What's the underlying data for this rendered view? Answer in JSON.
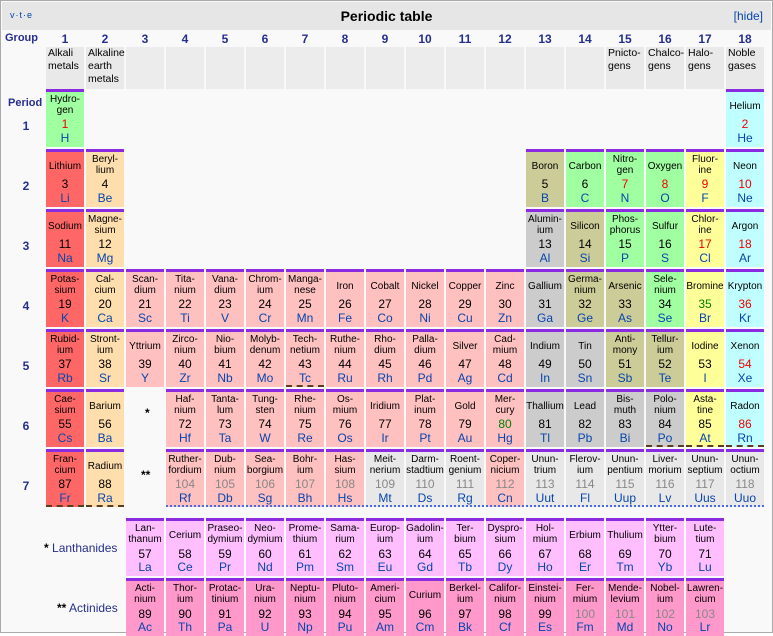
{
  "header": {
    "vte": "v·t·e",
    "title": "Periodic table",
    "hide_label": "[hide]"
  },
  "labels": {
    "group": "Group",
    "period": "Period",
    "lanth_star": "*",
    "act_star": "**",
    "lanth_label": "Lanthanides",
    "act_label": "Actinides"
  },
  "groups": [
    {
      "n": "1",
      "name": "Alkali metals"
    },
    {
      "n": "2",
      "name": "Alkaline earth metals"
    },
    {
      "n": "3",
      "name": ""
    },
    {
      "n": "4",
      "name": ""
    },
    {
      "n": "5",
      "name": ""
    },
    {
      "n": "6",
      "name": ""
    },
    {
      "n": "7",
      "name": ""
    },
    {
      "n": "8",
      "name": ""
    },
    {
      "n": "9",
      "name": ""
    },
    {
      "n": "10",
      "name": ""
    },
    {
      "n": "11",
      "name": ""
    },
    {
      "n": "12",
      "name": ""
    },
    {
      "n": "13",
      "name": ""
    },
    {
      "n": "14",
      "name": ""
    },
    {
      "n": "15",
      "name": "Pnicto-gens"
    },
    {
      "n": "16",
      "name": "Chalco-gens"
    },
    {
      "n": "17",
      "name": "Halo-gens"
    },
    {
      "n": "18",
      "name": "Noble gases"
    }
  ],
  "periods": [
    "1",
    "2",
    "3",
    "4",
    "5",
    "6",
    "7"
  ],
  "elements": [
    {
      "g": 1,
      "p": 1,
      "name": "Hydro-gen",
      "num": "1",
      "sym": "H",
      "cat": "nm",
      "st": "g"
    },
    {
      "g": 18,
      "p": 1,
      "name": "Helium",
      "num": "2",
      "sym": "He",
      "cat": "ng",
      "st": "g"
    },
    {
      "g": 1,
      "p": 2,
      "name": "Lithium",
      "num": "3",
      "sym": "Li",
      "cat": "alk",
      "st": "s"
    },
    {
      "g": 2,
      "p": 2,
      "name": "Beryl-lium",
      "num": "4",
      "sym": "Be",
      "cat": "ae",
      "st": "s"
    },
    {
      "g": 13,
      "p": 2,
      "name": "Boron",
      "num": "5",
      "sym": "B",
      "cat": "ml",
      "st": "s"
    },
    {
      "g": 14,
      "p": 2,
      "name": "Carbon",
      "num": "6",
      "sym": "C",
      "cat": "nm",
      "st": "s"
    },
    {
      "g": 15,
      "p": 2,
      "name": "Nitro-gen",
      "num": "7",
      "sym": "N",
      "cat": "nm",
      "st": "g"
    },
    {
      "g": 16,
      "p": 2,
      "name": "Oxygen",
      "num": "8",
      "sym": "O",
      "cat": "nm",
      "st": "g"
    },
    {
      "g": 17,
      "p": 2,
      "name": "Fluor-ine",
      "num": "9",
      "sym": "F",
      "cat": "hal",
      "st": "g"
    },
    {
      "g": 18,
      "p": 2,
      "name": "Neon",
      "num": "10",
      "sym": "Ne",
      "cat": "ng",
      "st": "g"
    },
    {
      "g": 1,
      "p": 3,
      "name": "Sodium",
      "num": "11",
      "sym": "Na",
      "cat": "alk",
      "st": "s"
    },
    {
      "g": 2,
      "p": 3,
      "name": "Magne-sium",
      "num": "12",
      "sym": "Mg",
      "cat": "ae",
      "st": "s"
    },
    {
      "g": 13,
      "p": 3,
      "name": "Alumin-ium",
      "num": "13",
      "sym": "Al",
      "cat": "pt",
      "st": "s"
    },
    {
      "g": 14,
      "p": 3,
      "name": "Silicon",
      "num": "14",
      "sym": "Si",
      "cat": "ml",
      "st": "s"
    },
    {
      "g": 15,
      "p": 3,
      "name": "Phos-phorus",
      "num": "15",
      "sym": "P",
      "cat": "nm",
      "st": "s"
    },
    {
      "g": 16,
      "p": 3,
      "name": "Sulfur",
      "num": "16",
      "sym": "S",
      "cat": "nm",
      "st": "s"
    },
    {
      "g": 17,
      "p": 3,
      "name": "Chlor-ine",
      "num": "17",
      "sym": "Cl",
      "cat": "hal",
      "st": "g"
    },
    {
      "g": 18,
      "p": 3,
      "name": "Argon",
      "num": "18",
      "sym": "Ar",
      "cat": "ng",
      "st": "g"
    },
    {
      "g": 1,
      "p": 4,
      "name": "Potas-sium",
      "num": "19",
      "sym": "K",
      "cat": "alk",
      "st": "s"
    },
    {
      "g": 2,
      "p": 4,
      "name": "Cal-cium",
      "num": "20",
      "sym": "Ca",
      "cat": "ae",
      "st": "s"
    },
    {
      "g": 3,
      "p": 4,
      "name": "Scan-dium",
      "num": "21",
      "sym": "Sc",
      "cat": "tm",
      "st": "s"
    },
    {
      "g": 4,
      "p": 4,
      "name": "Tita-nium",
      "num": "22",
      "sym": "Ti",
      "cat": "tm",
      "st": "s"
    },
    {
      "g": 5,
      "p": 4,
      "name": "Vana-dium",
      "num": "23",
      "sym": "V",
      "cat": "tm",
      "st": "s"
    },
    {
      "g": 6,
      "p": 4,
      "name": "Chrom-ium",
      "num": "24",
      "sym": "Cr",
      "cat": "tm",
      "st": "s"
    },
    {
      "g": 7,
      "p": 4,
      "name": "Manga-nese",
      "num": "25",
      "sym": "Mn",
      "cat": "tm",
      "st": "s"
    },
    {
      "g": 8,
      "p": 4,
      "name": "Iron",
      "num": "26",
      "sym": "Fe",
      "cat": "tm",
      "st": "s"
    },
    {
      "g": 9,
      "p": 4,
      "name": "Cobalt",
      "num": "27",
      "sym": "Co",
      "cat": "tm",
      "st": "s"
    },
    {
      "g": 10,
      "p": 4,
      "name": "Nickel",
      "num": "28",
      "sym": "Ni",
      "cat": "tm",
      "st": "s"
    },
    {
      "g": 11,
      "p": 4,
      "name": "Copper",
      "num": "29",
      "sym": "Cu",
      "cat": "tm",
      "st": "s"
    },
    {
      "g": 12,
      "p": 4,
      "name": "Zinc",
      "num": "30",
      "sym": "Zn",
      "cat": "tm",
      "st": "s"
    },
    {
      "g": 13,
      "p": 4,
      "name": "Gallium",
      "num": "31",
      "sym": "Ga",
      "cat": "pt",
      "st": "s"
    },
    {
      "g": 14,
      "p": 4,
      "name": "Germa-nium",
      "num": "32",
      "sym": "Ge",
      "cat": "ml",
      "st": "s"
    },
    {
      "g": 15,
      "p": 4,
      "name": "Arsenic",
      "num": "33",
      "sym": "As",
      "cat": "ml",
      "st": "s"
    },
    {
      "g": 16,
      "p": 4,
      "name": "Sele-nium",
      "num": "34",
      "sym": "Se",
      "cat": "nm",
      "st": "s"
    },
    {
      "g": 17,
      "p": 4,
      "name": "Bromine",
      "num": "35",
      "sym": "Br",
      "cat": "hal",
      "st": "l"
    },
    {
      "g": 18,
      "p": 4,
      "name": "Krypton",
      "num": "36",
      "sym": "Kr",
      "cat": "ng",
      "st": "g"
    },
    {
      "g": 1,
      "p": 5,
      "name": "Rubid-ium",
      "num": "37",
      "sym": "Rb",
      "cat": "alk",
      "st": "s"
    },
    {
      "g": 2,
      "p": 5,
      "name": "Stront-ium",
      "num": "38",
      "sym": "Sr",
      "cat": "ae",
      "st": "s"
    },
    {
      "g": 3,
      "p": 5,
      "name": "Yttrium",
      "num": "39",
      "sym": "Y",
      "cat": "tm",
      "st": "s"
    },
    {
      "g": 4,
      "p": 5,
      "name": "Zirco-nium",
      "num": "40",
      "sym": "Zr",
      "cat": "tm",
      "st": "s"
    },
    {
      "g": 5,
      "p": 5,
      "name": "Nio-bium",
      "num": "41",
      "sym": "Nb",
      "cat": "tm",
      "st": "s"
    },
    {
      "g": 6,
      "p": 5,
      "name": "Molyb-denum",
      "num": "42",
      "sym": "Mo",
      "cat": "tm",
      "st": "s"
    },
    {
      "g": 7,
      "p": 5,
      "name": "Tech-netium",
      "num": "43",
      "sym": "Tc",
      "cat": "tm",
      "st": "s",
      "bd": "dashed"
    },
    {
      "g": 8,
      "p": 5,
      "name": "Ruthe-nium",
      "num": "44",
      "sym": "Ru",
      "cat": "tm",
      "st": "s"
    },
    {
      "g": 9,
      "p": 5,
      "name": "Rho-dium",
      "num": "45",
      "sym": "Rh",
      "cat": "tm",
      "st": "s"
    },
    {
      "g": 10,
      "p": 5,
      "name": "Palla-dium",
      "num": "46",
      "sym": "Pd",
      "cat": "tm",
      "st": "s"
    },
    {
      "g": 11,
      "p": 5,
      "name": "Silver",
      "num": "47",
      "sym": "Ag",
      "cat": "tm",
      "st": "s"
    },
    {
      "g": 12,
      "p": 5,
      "name": "Cad-mium",
      "num": "48",
      "sym": "Cd",
      "cat": "tm",
      "st": "s"
    },
    {
      "g": 13,
      "p": 5,
      "name": "Indium",
      "num": "49",
      "sym": "In",
      "cat": "pt",
      "st": "s"
    },
    {
      "g": 14,
      "p": 5,
      "name": "Tin",
      "num": "50",
      "sym": "Sn",
      "cat": "pt",
      "st": "s"
    },
    {
      "g": 15,
      "p": 5,
      "name": "Anti-mony",
      "num": "51",
      "sym": "Sb",
      "cat": "ml",
      "st": "s"
    },
    {
      "g": 16,
      "p": 5,
      "name": "Tellur-ium",
      "num": "52",
      "sym": "Te",
      "cat": "ml",
      "st": "s"
    },
    {
      "g": 17,
      "p": 5,
      "name": "Iodine",
      "num": "53",
      "sym": "I",
      "cat": "hal",
      "st": "s"
    },
    {
      "g": 18,
      "p": 5,
      "name": "Xenon",
      "num": "54",
      "sym": "Xe",
      "cat": "ng",
      "st": "g"
    },
    {
      "g": 1,
      "p": 6,
      "name": "Cae-sium",
      "num": "55",
      "sym": "Cs",
      "cat": "alk",
      "st": "s"
    },
    {
      "g": 2,
      "p": 6,
      "name": "Barium",
      "num": "56",
      "sym": "Ba",
      "cat": "ae",
      "st": "s"
    },
    {
      "g": 4,
      "p": 6,
      "name": "Haf-nium",
      "num": "72",
      "sym": "Hf",
      "cat": "tm",
      "st": "s"
    },
    {
      "g": 5,
      "p": 6,
      "name": "Tanta-lum",
      "num": "73",
      "sym": "Ta",
      "cat": "tm",
      "st": "s"
    },
    {
      "g": 6,
      "p": 6,
      "name": "Tung-sten",
      "num": "74",
      "sym": "W",
      "cat": "tm",
      "st": "s"
    },
    {
      "g": 7,
      "p": 6,
      "name": "Rhe-nium",
      "num": "75",
      "sym": "Re",
      "cat": "tm",
      "st": "s"
    },
    {
      "g": 8,
      "p": 6,
      "name": "Os-mium",
      "num": "76",
      "sym": "Os",
      "cat": "tm",
      "st": "s"
    },
    {
      "g": 9,
      "p": 6,
      "name": "Iridium",
      "num": "77",
      "sym": "Ir",
      "cat": "tm",
      "st": "s"
    },
    {
      "g": 10,
      "p": 6,
      "name": "Plat-inum",
      "num": "78",
      "sym": "Pt",
      "cat": "tm",
      "st": "s"
    },
    {
      "g": 11,
      "p": 6,
      "name": "Gold",
      "num": "79",
      "sym": "Au",
      "cat": "tm",
      "st": "s"
    },
    {
      "g": 12,
      "p": 6,
      "name": "Mer-cury",
      "num": "80",
      "sym": "Hg",
      "cat": "tm",
      "st": "l"
    },
    {
      "g": 13,
      "p": 6,
      "name": "Thallium",
      "num": "81",
      "sym": "Tl",
      "cat": "pt",
      "st": "s"
    },
    {
      "g": 14,
      "p": 6,
      "name": "Lead",
      "num": "82",
      "sym": "Pb",
      "cat": "pt",
      "st": "s"
    },
    {
      "g": 15,
      "p": 6,
      "name": "Bis-muth",
      "num": "83",
      "sym": "Bi",
      "cat": "pt",
      "st": "s"
    },
    {
      "g": 16,
      "p": 6,
      "name": "Polo-nium",
      "num": "84",
      "sym": "Po",
      "cat": "pt",
      "st": "s",
      "bd": "dashed"
    },
    {
      "g": 17,
      "p": 6,
      "name": "Asta-tine",
      "num": "85",
      "sym": "At",
      "cat": "hal",
      "st": "s",
      "bd": "dashed"
    },
    {
      "g": 18,
      "p": 6,
      "name": "Radon",
      "num": "86",
      "sym": "Rn",
      "cat": "ng",
      "st": "g",
      "bd": "dashed"
    },
    {
      "g": 1,
      "p": 7,
      "name": "Fran-cium",
      "num": "87",
      "sym": "Fr",
      "cat": "alk",
      "st": "s",
      "bd": "dashed"
    },
    {
      "g": 2,
      "p": 7,
      "name": "Radium",
      "num": "88",
      "sym": "Ra",
      "cat": "ae",
      "st": "s",
      "bd": "dashed"
    },
    {
      "g": 4,
      "p": 7,
      "name": "Ruther-fordium",
      "num": "104",
      "sym": "Rf",
      "cat": "tm",
      "st": "u",
      "bd": "dotted"
    },
    {
      "g": 5,
      "p": 7,
      "name": "Dub-nium",
      "num": "105",
      "sym": "Db",
      "cat": "tm",
      "st": "u",
      "bd": "dotted"
    },
    {
      "g": 6,
      "p": 7,
      "name": "Sea-borgium",
      "num": "106",
      "sym": "Sg",
      "cat": "tm",
      "st": "u",
      "bd": "dotted"
    },
    {
      "g": 7,
      "p": 7,
      "name": "Bohr-ium",
      "num": "107",
      "sym": "Bh",
      "cat": "tm",
      "st": "u",
      "bd": "dotted"
    },
    {
      "g": 8,
      "p": 7,
      "name": "Has-sium",
      "num": "108",
      "sym": "Hs",
      "cat": "tm",
      "st": "u",
      "bd": "dotted"
    },
    {
      "g": 9,
      "p": 7,
      "name": "Meit-nerium",
      "num": "109",
      "sym": "Mt",
      "cat": "unk",
      "st": "u",
      "bd": "dotted"
    },
    {
      "g": 10,
      "p": 7,
      "name": "Darm-stadtium",
      "num": "110",
      "sym": "Ds",
      "cat": "unk",
      "st": "u",
      "bd": "dotted"
    },
    {
      "g": 11,
      "p": 7,
      "name": "Roent-genium",
      "num": "111",
      "sym": "Rg",
      "cat": "unk",
      "st": "u",
      "bd": "dotted"
    },
    {
      "g": 12,
      "p": 7,
      "name": "Coper-nicium",
      "num": "112",
      "sym": "Cn",
      "cat": "tm",
      "st": "u",
      "bd": "dotted"
    },
    {
      "g": 13,
      "p": 7,
      "name": "Unun-trium",
      "num": "113",
      "sym": "Uut",
      "cat": "unk",
      "st": "u",
      "bd": "dotted"
    },
    {
      "g": 14,
      "p": 7,
      "name": "Flerov-ium",
      "num": "114",
      "sym": "Fl",
      "cat": "unk",
      "st": "u",
      "bd": "dotted"
    },
    {
      "g": 15,
      "p": 7,
      "name": "Unun-pentium",
      "num": "115",
      "sym": "Uup",
      "cat": "unk",
      "st": "u",
      "bd": "dotted"
    },
    {
      "g": 16,
      "p": 7,
      "name": "Liver-morium",
      "num": "116",
      "sym": "Lv",
      "cat": "unk",
      "st": "u",
      "bd": "dotted"
    },
    {
      "g": 17,
      "p": 7,
      "name": "Unun-septium",
      "num": "117",
      "sym": "Uus",
      "cat": "unk",
      "st": "u",
      "bd": "dotted"
    },
    {
      "g": 18,
      "p": 7,
      "name": "Unun-octium",
      "num": "118",
      "sym": "Uuo",
      "cat": "unk",
      "st": "u",
      "bd": "dotted"
    }
  ],
  "lanthanides": [
    {
      "name": "Lan-thanum",
      "num": "57",
      "sym": "La"
    },
    {
      "name": "Cerium",
      "num": "58",
      "sym": "Ce"
    },
    {
      "name": "Praseo-dymium",
      "num": "59",
      "sym": "Pr"
    },
    {
      "name": "Neo-dymium",
      "num": "60",
      "sym": "Nd"
    },
    {
      "name": "Prome-thium",
      "num": "61",
      "sym": "Pm"
    },
    {
      "name": "Sama-rium",
      "num": "62",
      "sym": "Sm"
    },
    {
      "name": "Europ-ium",
      "num": "63",
      "sym": "Eu"
    },
    {
      "name": "Gadolin-ium",
      "num": "64",
      "sym": "Gd"
    },
    {
      "name": "Ter-bium",
      "num": "65",
      "sym": "Tb"
    },
    {
      "name": "Dyspro-sium",
      "num": "66",
      "sym": "Dy"
    },
    {
      "name": "Hol-mium",
      "num": "67",
      "sym": "Ho"
    },
    {
      "name": "Erbium",
      "num": "68",
      "sym": "Er"
    },
    {
      "name": "Thulium",
      "num": "69",
      "sym": "Tm"
    },
    {
      "name": "Ytter-bium",
      "num": "70",
      "sym": "Yb"
    },
    {
      "name": "Lute-tium",
      "num": "71",
      "sym": "Lu"
    }
  ],
  "actinides": [
    {
      "name": "Acti-nium",
      "num": "89",
      "sym": "Ac",
      "st": "s"
    },
    {
      "name": "Thor-ium",
      "num": "90",
      "sym": "Th",
      "st": "s"
    },
    {
      "name": "Protac-tinium",
      "num": "91",
      "sym": "Pa",
      "st": "s"
    },
    {
      "name": "Ura-nium",
      "num": "92",
      "sym": "U",
      "st": "s"
    },
    {
      "name": "Neptu-nium",
      "num": "93",
      "sym": "Np",
      "st": "s"
    },
    {
      "name": "Pluto-nium",
      "num": "94",
      "sym": "Pu",
      "st": "s"
    },
    {
      "name": "Ameri-cium",
      "num": "95",
      "sym": "Am",
      "st": "s"
    },
    {
      "name": "Curium",
      "num": "96",
      "sym": "Cm",
      "st": "s"
    },
    {
      "name": "Berkel-ium",
      "num": "97",
      "sym": "Bk",
      "st": "s"
    },
    {
      "name": "Califor-nium",
      "num": "98",
      "sym": "Cf",
      "st": "s"
    },
    {
      "name": "Einstei-nium",
      "num": "99",
      "sym": "Es",
      "st": "s"
    },
    {
      "name": "Fer-mium",
      "num": "100",
      "sym": "Fm",
      "st": "u"
    },
    {
      "name": "Mende-levium",
      "num": "101",
      "sym": "Md",
      "st": "u"
    },
    {
      "name": "Nobel-ium",
      "num": "102",
      "sym": "No",
      "st": "u"
    },
    {
      "name": "Lawren-cium",
      "num": "103",
      "sym": "Lr",
      "st": "u"
    }
  ],
  "colors": {
    "alk": "#ff6666",
    "ae": "#ffdead",
    "tm": "#ffc0c0",
    "pt": "#cccccc",
    "ml": "#cccc99",
    "nm": "#a0ffa0",
    "hal": "#ffff99",
    "ng": "#c0ffff",
    "lan": "#ffbfff",
    "act": "#ff99cc",
    "unk": "#e8e8e8"
  }
}
